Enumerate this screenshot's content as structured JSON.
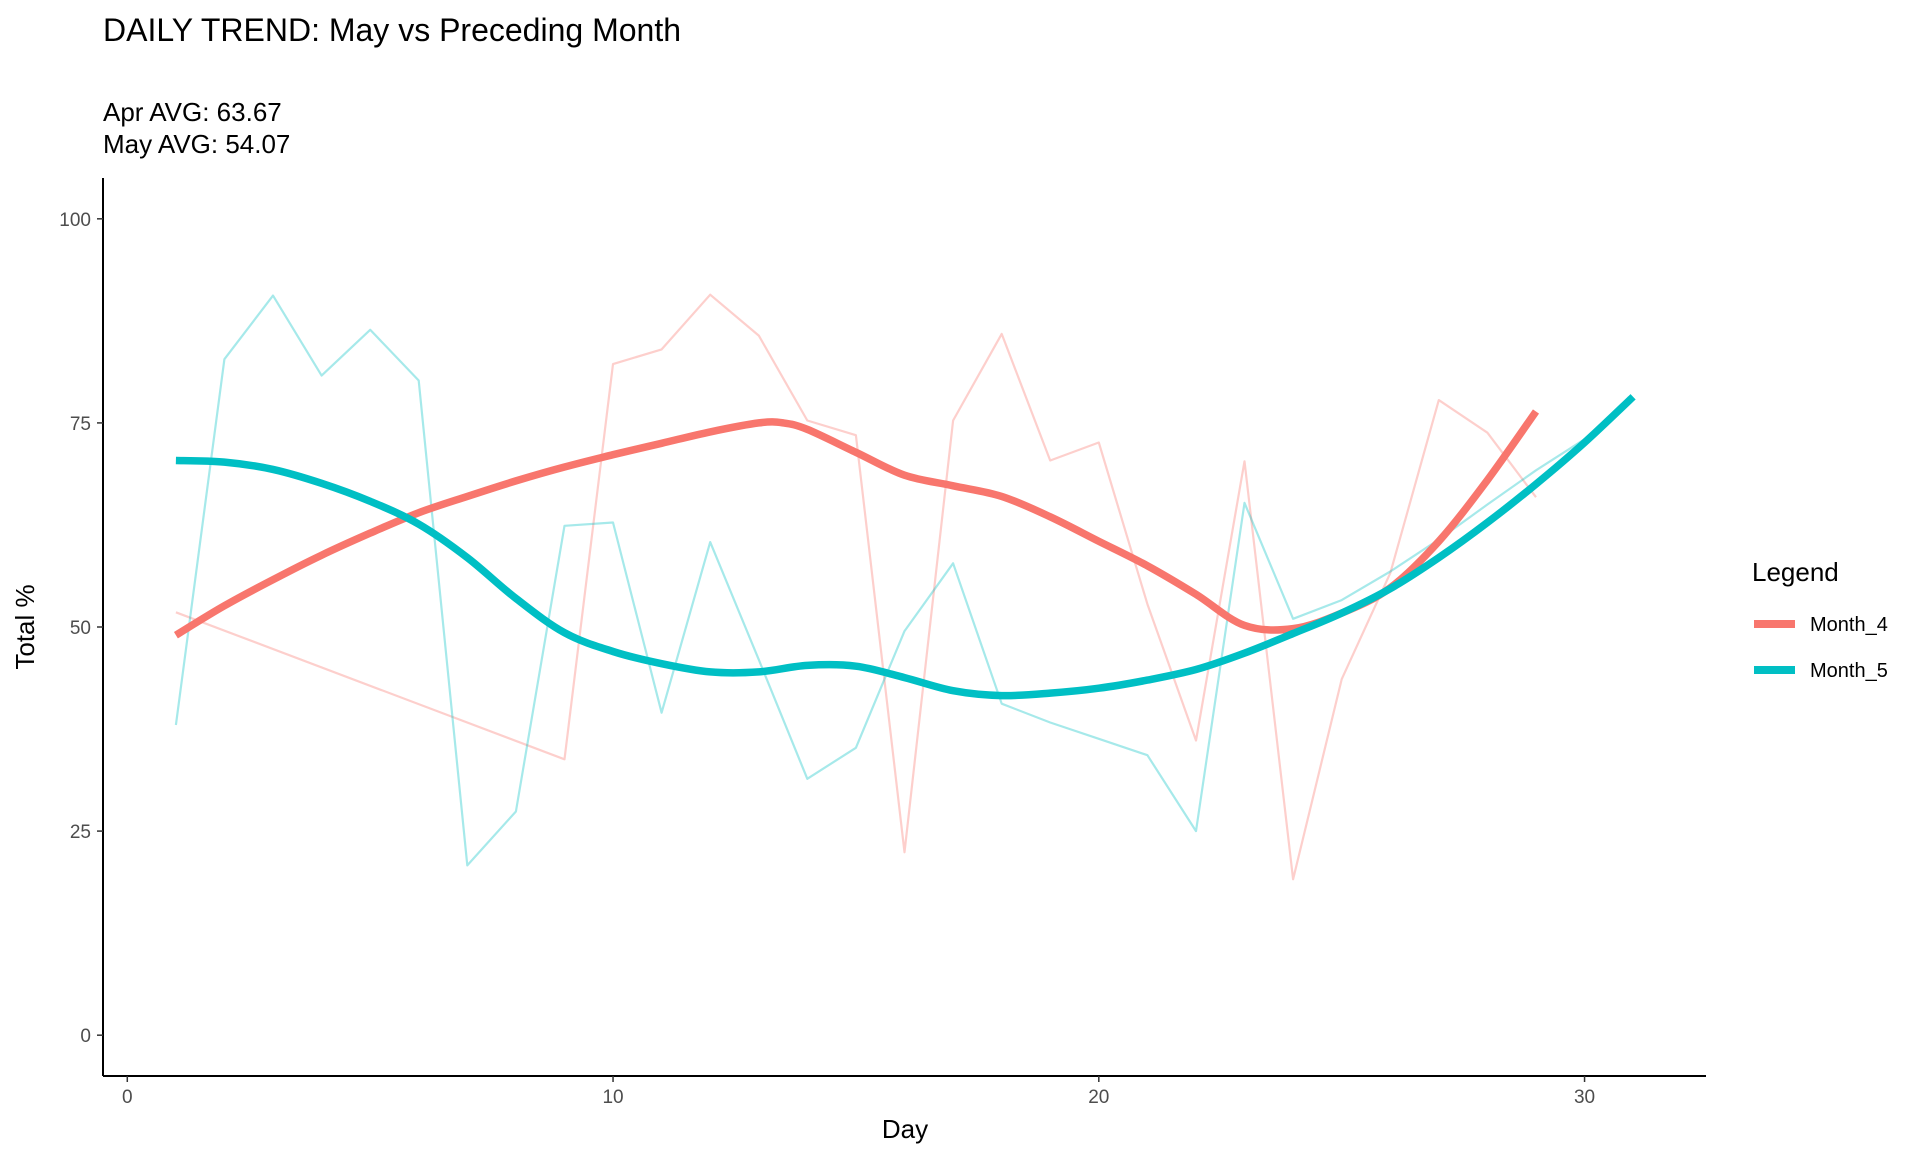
{
  "chart_data": {
    "type": "line",
    "title": "DAILY TREND: May vs Preceding Month",
    "subtitle_lines": [
      "Apr AVG: 63.67",
      "May AVG: 54.07"
    ],
    "xlabel": "Day",
    "ylabel": "Total %",
    "xlim": [
      -0.5,
      32.5
    ],
    "ylim": [
      -5,
      105
    ],
    "x_ticks": [
      0,
      10,
      20,
      30
    ],
    "y_ticks": [
      0,
      25,
      50,
      75,
      100
    ],
    "grid": false,
    "legend": {
      "title": "Legend",
      "placement": "right"
    },
    "series": [
      {
        "name": "Month_4",
        "color": "#F8766D",
        "raw_x": [
          1,
          9,
          10,
          11,
          12,
          13,
          14,
          15,
          16,
          17,
          18,
          19,
          20,
          21,
          22,
          23,
          24,
          25,
          26,
          27,
          28,
          29
        ],
        "raw_y": [
          51.8,
          33.8,
          82.2,
          84.0,
          90.7,
          85.7,
          75.3,
          73.5,
          22.4,
          75.3,
          85.9,
          70.4,
          72.6,
          52.8,
          36.1,
          70.3,
          19.1,
          43.6,
          56.6,
          77.8,
          73.8,
          65.9
        ],
        "smooth_x": [
          1,
          2,
          3,
          4,
          5,
          6,
          7,
          8,
          9,
          10,
          11,
          12,
          13,
          13.5,
          14,
          15,
          16,
          17,
          18,
          19,
          20,
          21,
          22,
          23,
          24,
          25,
          26,
          27,
          28,
          29
        ],
        "smooth_y": [
          49.0,
          52.6,
          55.8,
          58.8,
          61.5,
          64.0,
          66.0,
          67.9,
          69.6,
          71.1,
          72.5,
          73.9,
          75.0,
          75.0,
          74.2,
          71.4,
          68.6,
          67.3,
          66.0,
          63.5,
          60.5,
          57.5,
          54.0,
          50.2,
          49.8,
          51.7,
          54.8,
          60.5,
          68.0,
          76.4
        ]
      },
      {
        "name": "Month_5",
        "color": "#00BFC4",
        "raw_x": [
          1,
          2,
          3,
          4,
          5,
          6,
          7,
          8,
          9,
          10,
          11,
          12,
          13,
          14,
          15,
          16,
          17,
          18,
          19,
          20,
          21,
          22,
          23,
          24,
          25,
          26,
          27,
          28,
          29,
          30
        ],
        "raw_y": [
          38.0,
          82.8,
          90.6,
          80.8,
          86.4,
          80.2,
          20.8,
          27.4,
          62.4,
          62.8,
          39.5,
          60.4,
          46.0,
          31.4,
          35.2,
          49.5,
          57.8,
          40.6,
          38.3,
          36.3,
          34.3,
          25.0,
          65.2,
          51.0,
          53.3,
          56.8,
          60.7,
          65.0,
          69.2,
          73.0
        ],
        "smooth_x": [
          1,
          2,
          3,
          4,
          5,
          6,
          7,
          8,
          9,
          10,
          11,
          12,
          13,
          14,
          15,
          16,
          17,
          18,
          19,
          20,
          21,
          22,
          23,
          24,
          25,
          26,
          27,
          28,
          29,
          30,
          31
        ],
        "smooth_y": [
          70.4,
          70.2,
          69.3,
          67.6,
          65.4,
          62.6,
          58.5,
          53.5,
          49.3,
          47.0,
          45.5,
          44.5,
          44.5,
          45.3,
          45.2,
          43.8,
          42.2,
          41.6,
          41.9,
          42.5,
          43.5,
          44.8,
          46.8,
          49.2,
          51.7,
          54.7,
          58.5,
          62.8,
          67.5,
          72.6,
          78.2
        ]
      }
    ]
  }
}
